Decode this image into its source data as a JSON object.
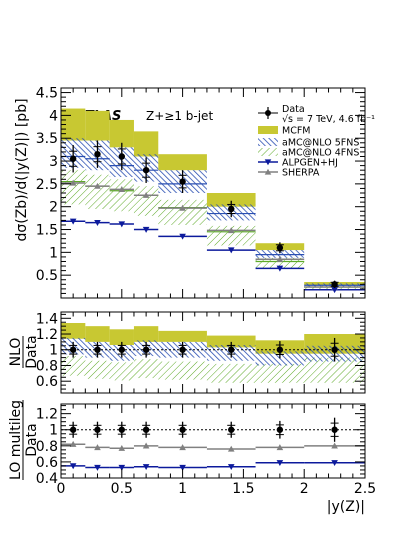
{
  "chart_data": {
    "type": "line",
    "experiment": "ATLAS",
    "selection": "Z+≥1 b-jet",
    "legend_position": "top-right",
    "xlabel": "|y(Z)|",
    "xlim": [
      0,
      2.5
    ],
    "x_ticks": [
      "0",
      "0.5",
      "1",
      "1.5",
      "2",
      "2.5"
    ],
    "bin_edges": [
      0.0,
      0.2,
      0.4,
      0.6,
      0.8,
      1.2,
      1.6,
      2.0,
      2.5
    ],
    "bin_centers": [
      0.1,
      0.3,
      0.5,
      0.7,
      1.0,
      1.4,
      1.8,
      2.25
    ],
    "colors": {
      "mcfm": "#c8c832",
      "amc5": "#2a4fb2",
      "amc4": "#5eaa28",
      "alpgen": "#0c1a9c",
      "sherpa": "#808080",
      "data": "#000000"
    },
    "main_panel": {
      "ylabel": "dσ(Zb)/d(|y(Z)|) [pb]",
      "ylim": [
        0,
        4.6
      ],
      "y_ticks": [
        "0.5",
        "1",
        "1.5",
        "2",
        "2.5",
        "3",
        "3.5",
        "4",
        "4.5"
      ],
      "series": [
        {
          "key": "data",
          "name": "Data",
          "legend_extra": "√s = 7 TeV, 4.6 fb⁻¹",
          "values": [
            3.05,
            3.15,
            3.1,
            2.8,
            2.55,
            1.95,
            1.1,
            0.3
          ],
          "err": [
            0.3,
            0.3,
            0.3,
            0.28,
            0.25,
            0.18,
            0.12,
            0.08
          ]
        },
        {
          "key": "mcfm",
          "name": "MCFM",
          "low": [
            3.45,
            3.45,
            3.3,
            3.1,
            2.8,
            2.0,
            1.05,
            0.28
          ],
          "high": [
            4.15,
            4.1,
            3.9,
            3.65,
            3.15,
            2.3,
            1.2,
            0.35
          ]
        },
        {
          "key": "amc5",
          "name": "aMC@NLO 5FNS",
          "values": [
            3.1,
            3.05,
            2.9,
            2.8,
            2.5,
            1.85,
            0.95,
            0.28
          ],
          "low": [
            2.85,
            2.8,
            2.65,
            2.55,
            2.3,
            1.7,
            0.88,
            0.25
          ],
          "high": [
            3.5,
            3.45,
            3.3,
            3.15,
            2.8,
            2.05,
            1.05,
            0.32
          ]
        },
        {
          "key": "amc4",
          "name": "aMC@NLO 4FNS",
          "values": [
            2.55,
            2.45,
            2.35,
            2.25,
            1.98,
            1.45,
            0.8,
            0.24
          ],
          "low": [
            2.05,
            1.95,
            1.9,
            1.8,
            1.6,
            1.15,
            0.65,
            0.19
          ],
          "high": [
            2.8,
            2.7,
            2.6,
            2.45,
            2.15,
            1.58,
            0.88,
            0.27
          ]
        },
        {
          "key": "alpgen",
          "name": "ALPGEN+HJ",
          "values": [
            1.68,
            1.65,
            1.62,
            1.5,
            1.35,
            1.05,
            0.65,
            0.18
          ]
        },
        {
          "key": "sherpa",
          "name": "SHERPA",
          "values": [
            2.52,
            2.45,
            2.38,
            2.25,
            1.97,
            1.48,
            0.85,
            0.24
          ]
        }
      ]
    },
    "nlo_ratio_panel": {
      "ylabel_top": "NLO",
      "ylabel_bottom": "Data",
      "ylim": [
        0.45,
        1.48
      ],
      "y_ticks": [
        "0.6",
        "0.8",
        "1",
        "1.2",
        "1.4"
      ],
      "reference_line": 1,
      "data_center": [
        1.0,
        1.0,
        1.0,
        1.0,
        1.0,
        1.0,
        1.0,
        1.0
      ],
      "data_err": [
        0.1,
        0.1,
        0.1,
        0.1,
        0.1,
        0.1,
        0.11,
        0.15
      ],
      "mcfm": {
        "low": [
          1.14,
          1.1,
          1.06,
          1.1,
          1.1,
          1.03,
          0.95,
          0.95
        ],
        "high": [
          1.34,
          1.3,
          1.26,
          1.3,
          1.24,
          1.18,
          1.12,
          1.2
        ]
      },
      "amc5": {
        "low": [
          0.94,
          0.9,
          0.86,
          0.92,
          0.9,
          0.86,
          0.8,
          0.85
        ],
        "high": [
          1.15,
          1.1,
          1.06,
          1.12,
          1.1,
          1.06,
          0.98,
          1.05
        ]
      },
      "amc4": {
        "low": [
          0.67,
          0.63,
          0.61,
          0.64,
          0.62,
          0.58,
          0.58,
          0.58
        ],
        "high": [
          0.92,
          0.86,
          0.84,
          0.88,
          0.85,
          0.82,
          0.82,
          0.9
        ]
      }
    },
    "lo_ratio_panel": {
      "ylabel_top": "LO multileg",
      "ylabel_bottom": "Data",
      "ylim": [
        0.4,
        1.32
      ],
      "y_ticks": [
        "0.4",
        "0.6",
        "0.8",
        "1",
        "1.2"
      ],
      "reference_line": 1,
      "data_center": [
        1.0,
        1.0,
        1.0,
        1.0,
        1.0,
        1.0,
        1.0,
        1.0
      ],
      "data_err": [
        0.1,
        0.1,
        0.1,
        0.1,
        0.1,
        0.1,
        0.11,
        0.15
      ],
      "alpgen": [
        0.55,
        0.53,
        0.53,
        0.54,
        0.53,
        0.54,
        0.59,
        0.59
      ],
      "sherpa": [
        0.82,
        0.78,
        0.77,
        0.8,
        0.78,
        0.76,
        0.78,
        0.8
      ]
    }
  }
}
